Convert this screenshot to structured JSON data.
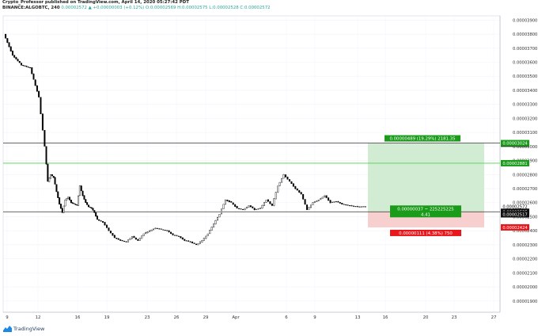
{
  "header": {
    "line1": "Crypto_Professor published on TradingView.com, April 14, 2020 05:27:42 PDT",
    "symbol": "BINANCE:ALGOBTC, 240",
    "price_info": "0.00002572 ▲ +0.00000003 (+0.12%) O:0.00002569 H:0.00002575 L:0.00002528 C:0.00002572"
  },
  "footer": {
    "brand": "TradingView"
  },
  "colors": {
    "up": "#26a69a",
    "down": "#ef5350",
    "candle": "#000000",
    "grid": "#f0f3fa",
    "profit_zone": "#d2ecd3",
    "loss_zone": "#f7cfcf",
    "target_line": "#4cd44c",
    "green_label": "#1a9b1a",
    "red_label": "#e8171c"
  },
  "chart_data": {
    "type": "candlestick",
    "title": "BINANCE:ALGOBTC, 240",
    "y_ticks": [
      "0.00003900",
      "0.00003800",
      "0.00003700",
      "0.00003600",
      "0.00003500",
      "0.00003400",
      "0.00003300",
      "0.00003200",
      "0.00003100",
      "0.00003000",
      "0.00002900",
      "0.00002800",
      "0.00002700",
      "0.00002600",
      "0.00002500",
      "0.00002400",
      "0.00002300",
      "0.00002200",
      "0.00002100",
      "0.00002000",
      "0.00001900"
    ],
    "ylim": [
      1.82e-05,
      3.93e-05
    ],
    "x_ticks": [
      "9",
      "12",
      "16",
      "19",
      "23",
      "26",
      "29",
      "Apr",
      "6",
      "9",
      "13",
      "16",
      "20",
      "23",
      "27"
    ],
    "horizontal_lines": [
      {
        "name": "resistance",
        "value": 3.024e-05
      },
      {
        "name": "target",
        "value": 2.881e-05
      },
      {
        "name": "support",
        "value": 2.535e-05
      }
    ],
    "position": {
      "entry": 2.535e-05,
      "target": 3.024e-05,
      "stop": 2.424e-05,
      "profit_text": "0.00000489 (19.29%) 2181.35",
      "loss_text": "0.00000111 (4.38%) 750",
      "middle_text_line1": "0.00000037 ~ 225225225",
      "middle_text_line2": "4.41"
    },
    "price_labels": [
      {
        "text": "0.00003020",
        "value": 3.02e-05,
        "style": "black"
      },
      {
        "text": "0.00003024",
        "value": 3.024e-05,
        "style": "green"
      },
      {
        "text": "0.00002881",
        "value": 2.881e-05,
        "style": "green"
      },
      {
        "text": "0.00002572",
        "value": 2.572e-05,
        "style": "plain"
      },
      {
        "text": "01:32:21",
        "value": 2.547e-05,
        "style": "plain"
      },
      {
        "text": "0.00002535",
        "value": 2.535e-05,
        "style": "black"
      },
      {
        "text": "0.00002517",
        "value": 2.517e-05,
        "style": "black"
      },
      {
        "text": "0.00002424",
        "value": 2.424e-05,
        "style": "red"
      }
    ],
    "series_points": [
      [
        0,
        3800
      ],
      [
        3,
        3650
      ],
      [
        6,
        3580
      ],
      [
        9,
        3560
      ],
      [
        12,
        3350
      ],
      [
        14,
        3000
      ],
      [
        15,
        2750
      ],
      [
        16,
        2800
      ],
      [
        17,
        2780
      ],
      [
        18,
        2680
      ],
      [
        19,
        2590
      ],
      [
        20,
        2530
      ],
      [
        21,
        2620
      ],
      [
        22,
        2640
      ],
      [
        23,
        2600
      ],
      [
        24,
        2590
      ],
      [
        25,
        2580
      ],
      [
        26,
        2720
      ],
      [
        27,
        2650
      ],
      [
        28,
        2600
      ],
      [
        29,
        2570
      ],
      [
        30,
        2560
      ],
      [
        31,
        2530
      ],
      [
        32,
        2480
      ],
      [
        34,
        2460
      ],
      [
        36,
        2400
      ],
      [
        38,
        2350
      ],
      [
        40,
        2330
      ],
      [
        42,
        2320
      ],
      [
        44,
        2360
      ],
      [
        46,
        2330
      ],
      [
        48,
        2380
      ],
      [
        50,
        2400
      ],
      [
        52,
        2420
      ],
      [
        54,
        2410
      ],
      [
        56,
        2400
      ],
      [
        58,
        2370
      ],
      [
        60,
        2360
      ],
      [
        62,
        2330
      ],
      [
        64,
        2320
      ],
      [
        66,
        2300
      ],
      [
        68,
        2330
      ],
      [
        70,
        2380
      ],
      [
        72,
        2450
      ],
      [
        74,
        2520
      ],
      [
        76,
        2620
      ],
      [
        78,
        2600
      ],
      [
        80,
        2560
      ],
      [
        82,
        2550
      ],
      [
        84,
        2580
      ],
      [
        86,
        2550
      ],
      [
        88,
        2560
      ],
      [
        90,
        2620
      ],
      [
        92,
        2580
      ],
      [
        94,
        2720
      ],
      [
        96,
        2800
      ],
      [
        98,
        2750
      ],
      [
        100,
        2700
      ],
      [
        102,
        2660
      ],
      [
        104,
        2550
      ],
      [
        106,
        2600
      ],
      [
        108,
        2620
      ],
      [
        110,
        2650
      ],
      [
        112,
        2600
      ],
      [
        114,
        2610
      ],
      [
        116,
        2590
      ],
      [
        118,
        2580
      ],
      [
        120,
        2575
      ],
      [
        122,
        2570
      ],
      [
        124,
        2572
      ]
    ]
  }
}
